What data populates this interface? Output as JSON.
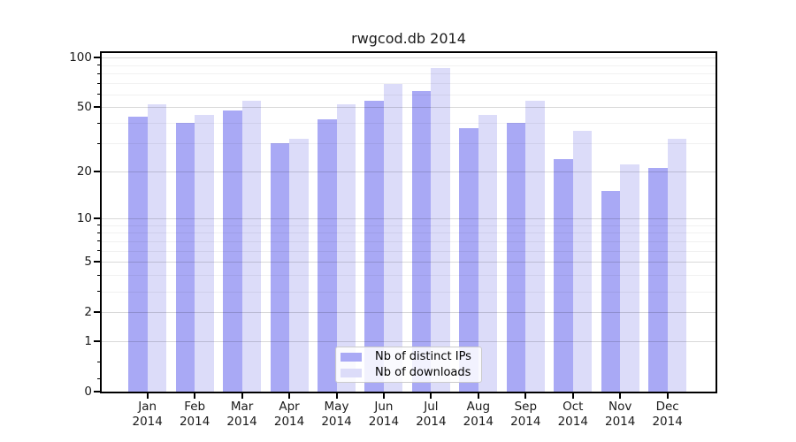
{
  "title": "rwgcod.db 2014",
  "chart_data": {
    "type": "bar",
    "title": "rwgcod.db 2014",
    "x_axis": {
      "categories": [
        "Jan",
        "Feb",
        "Mar",
        "Apr",
        "May",
        "Jun",
        "Jul",
        "Aug",
        "Sep",
        "Oct",
        "Nov",
        "Dec"
      ],
      "year_label": "2014"
    },
    "y_axis": {
      "scale": "log1p",
      "ticks": [
        100,
        50,
        20,
        10,
        5,
        2,
        1,
        0
      ],
      "tick_labels": [
        "100",
        "50",
        "20",
        "10",
        "5",
        "2",
        "1",
        "0"
      ],
      "minor_ticks": [
        90,
        80,
        70,
        60,
        40,
        30,
        9,
        8,
        7,
        6,
        4,
        3,
        0.5,
        0.2
      ],
      "range": [
        0,
        110
      ],
      "grid": "major-and-minor-horizontal"
    },
    "series": [
      {
        "name": "Nb of distinct IPs",
        "color": "#a9a9f5",
        "values": [
          44,
          40,
          48,
          30,
          42,
          55,
          63,
          37,
          40,
          24,
          15,
          21
        ]
      },
      {
        "name": "Nb of downloads",
        "color": "#dcdcf9",
        "values": [
          52,
          45,
          55,
          32,
          52,
          69,
          87,
          45,
          55,
          36,
          22,
          32
        ]
      }
    ],
    "legend": {
      "position": "bottom-center"
    }
  },
  "colors": {
    "background": "#ffffff",
    "axis": "#000000",
    "grid_major": "#d9d9d9",
    "grid_minor": "#efefef",
    "bar_distinct_ips": "#a9a9f5",
    "bar_downloads": "#dcdcf9"
  }
}
